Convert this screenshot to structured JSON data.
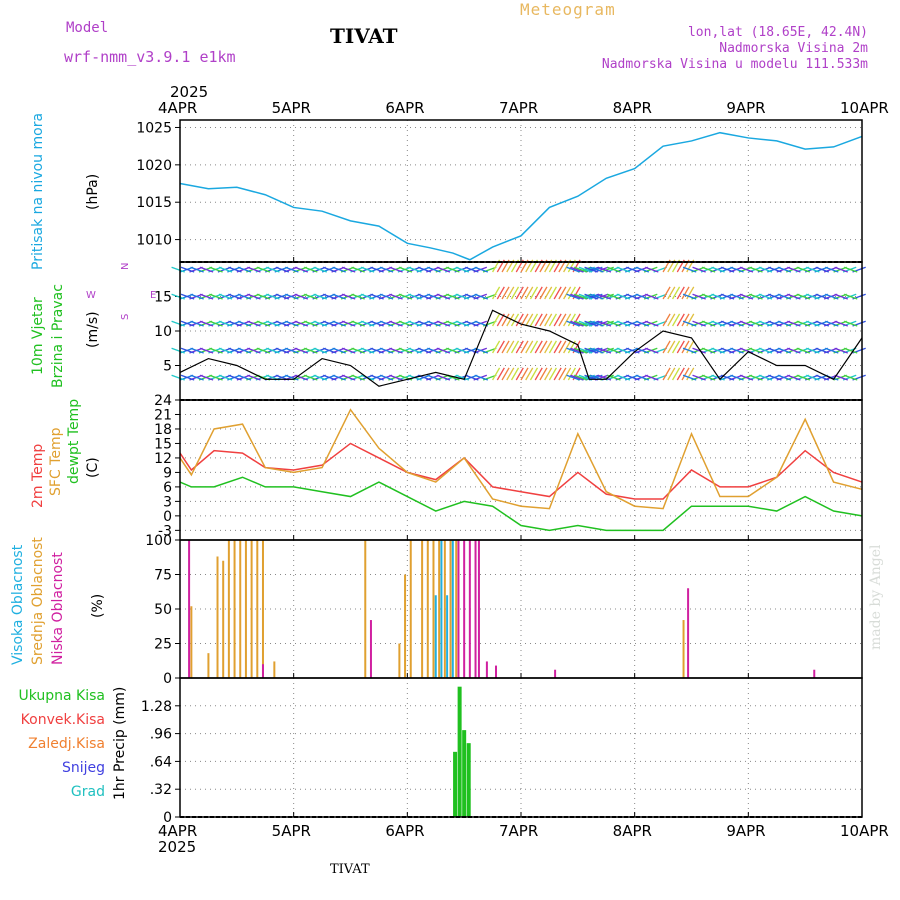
{
  "header": {
    "model_label": "Model",
    "model_name": "wrf-nmm_v3.9.1 e1km",
    "station": "TIVAT",
    "product": "Meteogram",
    "lonlat": "lon,lat (18.65E, 42.4N)",
    "elevation": "Nadmorska Visina 2m",
    "model_elevation": "Nadmorska Visina u modelu 111.533m"
  },
  "axis": {
    "year": "2025",
    "days": [
      "4APR",
      "5APR",
      "6APR",
      "7APR",
      "8APR",
      "9APR",
      "10APR"
    ]
  },
  "footer": {
    "station": "TIVAT",
    "watermark": "made by Angel"
  },
  "colors": {
    "pressure": "#1aa8e0",
    "temp": "#f04040",
    "sfc": "#e0a030",
    "dewp": "#20c020",
    "high": "#20b0e0",
    "mid": "#e0a030",
    "low": "#d020a0",
    "rain": "#20c020"
  },
  "chart_data": [
    {
      "type": "line",
      "panel": "pressure",
      "ylabel": "Pritisak na nivou mora",
      "unit": "(hPa)",
      "ylim": [
        1007,
        1026
      ],
      "yticks": [
        1010,
        1015,
        1020,
        1025
      ],
      "x": [
        0,
        0.25,
        0.5,
        0.75,
        1,
        1.25,
        1.5,
        1.75,
        2,
        2.2,
        2.4,
        2.55,
        2.75,
        3,
        3.25,
        3.5,
        3.75,
        4,
        4.25,
        4.5,
        4.75,
        5,
        5.25,
        5.5,
        5.75,
        6
      ],
      "series": [
        {
          "name": "",
          "values": [
            1017.5,
            1016.8,
            1017,
            1016,
            1014.3,
            1013.8,
            1012.5,
            1011.8,
            1009.5,
            1008.9,
            1008.2,
            1007.3,
            1009,
            1010.5,
            1014.3,
            1015.8,
            1018.2,
            1019.5,
            1022.5,
            1023.2,
            1024.3,
            1023.6,
            1023.2,
            1022.1,
            1022.4,
            1023.8
          ]
        }
      ]
    },
    {
      "type": "line",
      "panel": "wind",
      "ylabel": "10m Vjetar",
      "ylabel2": "Brzina i Pravac",
      "unit": "(m/s)",
      "ylim": [
        0,
        20
      ],
      "yticks": [
        5,
        10,
        15
      ],
      "compass": {
        "n": "N",
        "w": "W",
        "e": "E",
        "s": "S"
      },
      "x": [
        0,
        0.25,
        0.5,
        0.75,
        1,
        1.25,
        1.5,
        1.75,
        2,
        2.25,
        2.5,
        2.75,
        3,
        3.25,
        3.5,
        3.6,
        3.75,
        4,
        4.25,
        4.5,
        4.75,
        5,
        5.25,
        5.5,
        5.75,
        6
      ],
      "series": [
        {
          "name": "",
          "values": [
            4,
            6,
            5,
            3,
            3,
            6,
            5,
            2,
            3,
            4,
            3,
            13,
            11,
            10,
            8,
            3,
            3,
            7,
            10,
            9,
            3,
            7,
            5,
            5,
            3,
            9
          ]
        }
      ]
    },
    {
      "type": "line",
      "panel": "temperature",
      "ylabels": [
        "2m Temp",
        "SFC Temp",
        "dewpt Temp"
      ],
      "unit": "(C)",
      "ylim": [
        -5,
        24
      ],
      "yticks": [
        -3,
        0,
        3,
        6,
        9,
        12,
        15,
        18,
        21,
        24
      ],
      "x": [
        0,
        0.1,
        0.3,
        0.55,
        0.75,
        1,
        1.25,
        1.5,
        1.75,
        2,
        2.25,
        2.5,
        2.75,
        3,
        3.25,
        3.5,
        3.75,
        4,
        4.25,
        4.5,
        4.75,
        5,
        5.25,
        5.5,
        5.75,
        6
      ],
      "series": [
        {
          "name": "2m Temp",
          "values": [
            13,
            9.5,
            13.5,
            13,
            10,
            9.5,
            10.5,
            15,
            12,
            9,
            7.5,
            12,
            6,
            5,
            4,
            9,
            4.5,
            3.5,
            3.5,
            9.5,
            6,
            6,
            8,
            13.5,
            9,
            7
          ]
        },
        {
          "name": "SFC Temp",
          "values": [
            12,
            8.5,
            18,
            19,
            10,
            9,
            10,
            22,
            14,
            9,
            7,
            12,
            3.5,
            2,
            1.5,
            17,
            5,
            2,
            1.5,
            17,
            4,
            4,
            8,
            20,
            7,
            5.5
          ]
        },
        {
          "name": "dewpt Temp",
          "values": [
            7,
            6,
            6,
            8,
            6,
            6,
            5,
            4,
            7,
            4,
            1,
            3,
            2,
            -2,
            -3,
            -2,
            -3,
            -3,
            -3,
            2,
            2,
            2,
            1,
            4,
            1,
            0
          ]
        }
      ]
    },
    {
      "type": "bar",
      "panel": "clouds",
      "ylabels": [
        "Visoka Oblacnost",
        "Srednja Oblacnost",
        "Niska Oblacnost"
      ],
      "unit": "(%)",
      "ylim": [
        0,
        100
      ],
      "yticks": [
        0,
        25,
        50,
        75,
        100
      ],
      "series": [
        {
          "name": "Visoka Oblacnost",
          "x": [
            2.25,
            2.3,
            2.35,
            2.4
          ],
          "values": [
            60,
            100,
            60,
            100
          ]
        },
        {
          "name": "Srednja Oblacnost",
          "x": [
            0.1,
            0.25,
            0.33,
            0.38,
            0.43,
            0.48,
            0.53,
            0.58,
            0.63,
            0.68,
            0.73,
            0.83,
            1.63,
            1.93,
            1.98,
            2.03,
            2.13,
            2.18,
            2.23,
            2.28,
            2.33,
            2.38,
            2.43,
            4.43
          ],
          "values": [
            52,
            18,
            88,
            85,
            100,
            100,
            100,
            100,
            100,
            100,
            100,
            12,
            100,
            25,
            75,
            100,
            100,
            100,
            100,
            100,
            100,
            100,
            100,
            42
          ]
        },
        {
          "name": "Niska Oblacnost",
          "x": [
            0.08,
            0.73,
            1.68,
            2.45,
            2.5,
            2.55,
            2.6,
            2.63,
            2.7,
            2.78,
            3.3,
            4.47,
            5.58
          ],
          "values": [
            100,
            10,
            42,
            100,
            100,
            100,
            100,
            100,
            12,
            9,
            6,
            65,
            6
          ]
        }
      ]
    },
    {
      "type": "bar",
      "panel": "precip",
      "ylabels": [
        "Ukupna Kisa",
        "Konvek.Kisa",
        "Zaledj.Kisa",
        "Snijeg",
        "Grad"
      ],
      "unit": "1hr Precip (mm)",
      "ylim": [
        0,
        1.6
      ],
      "yticks": [
        0,
        0.32,
        0.64,
        0.96,
        1.28
      ],
      "series": [
        {
          "name": "Ukupna Kisa",
          "x": [
            2.42,
            2.46,
            2.5,
            2.54
          ],
          "values": [
            0.75,
            1.5,
            1.0,
            0.85
          ]
        }
      ]
    }
  ]
}
